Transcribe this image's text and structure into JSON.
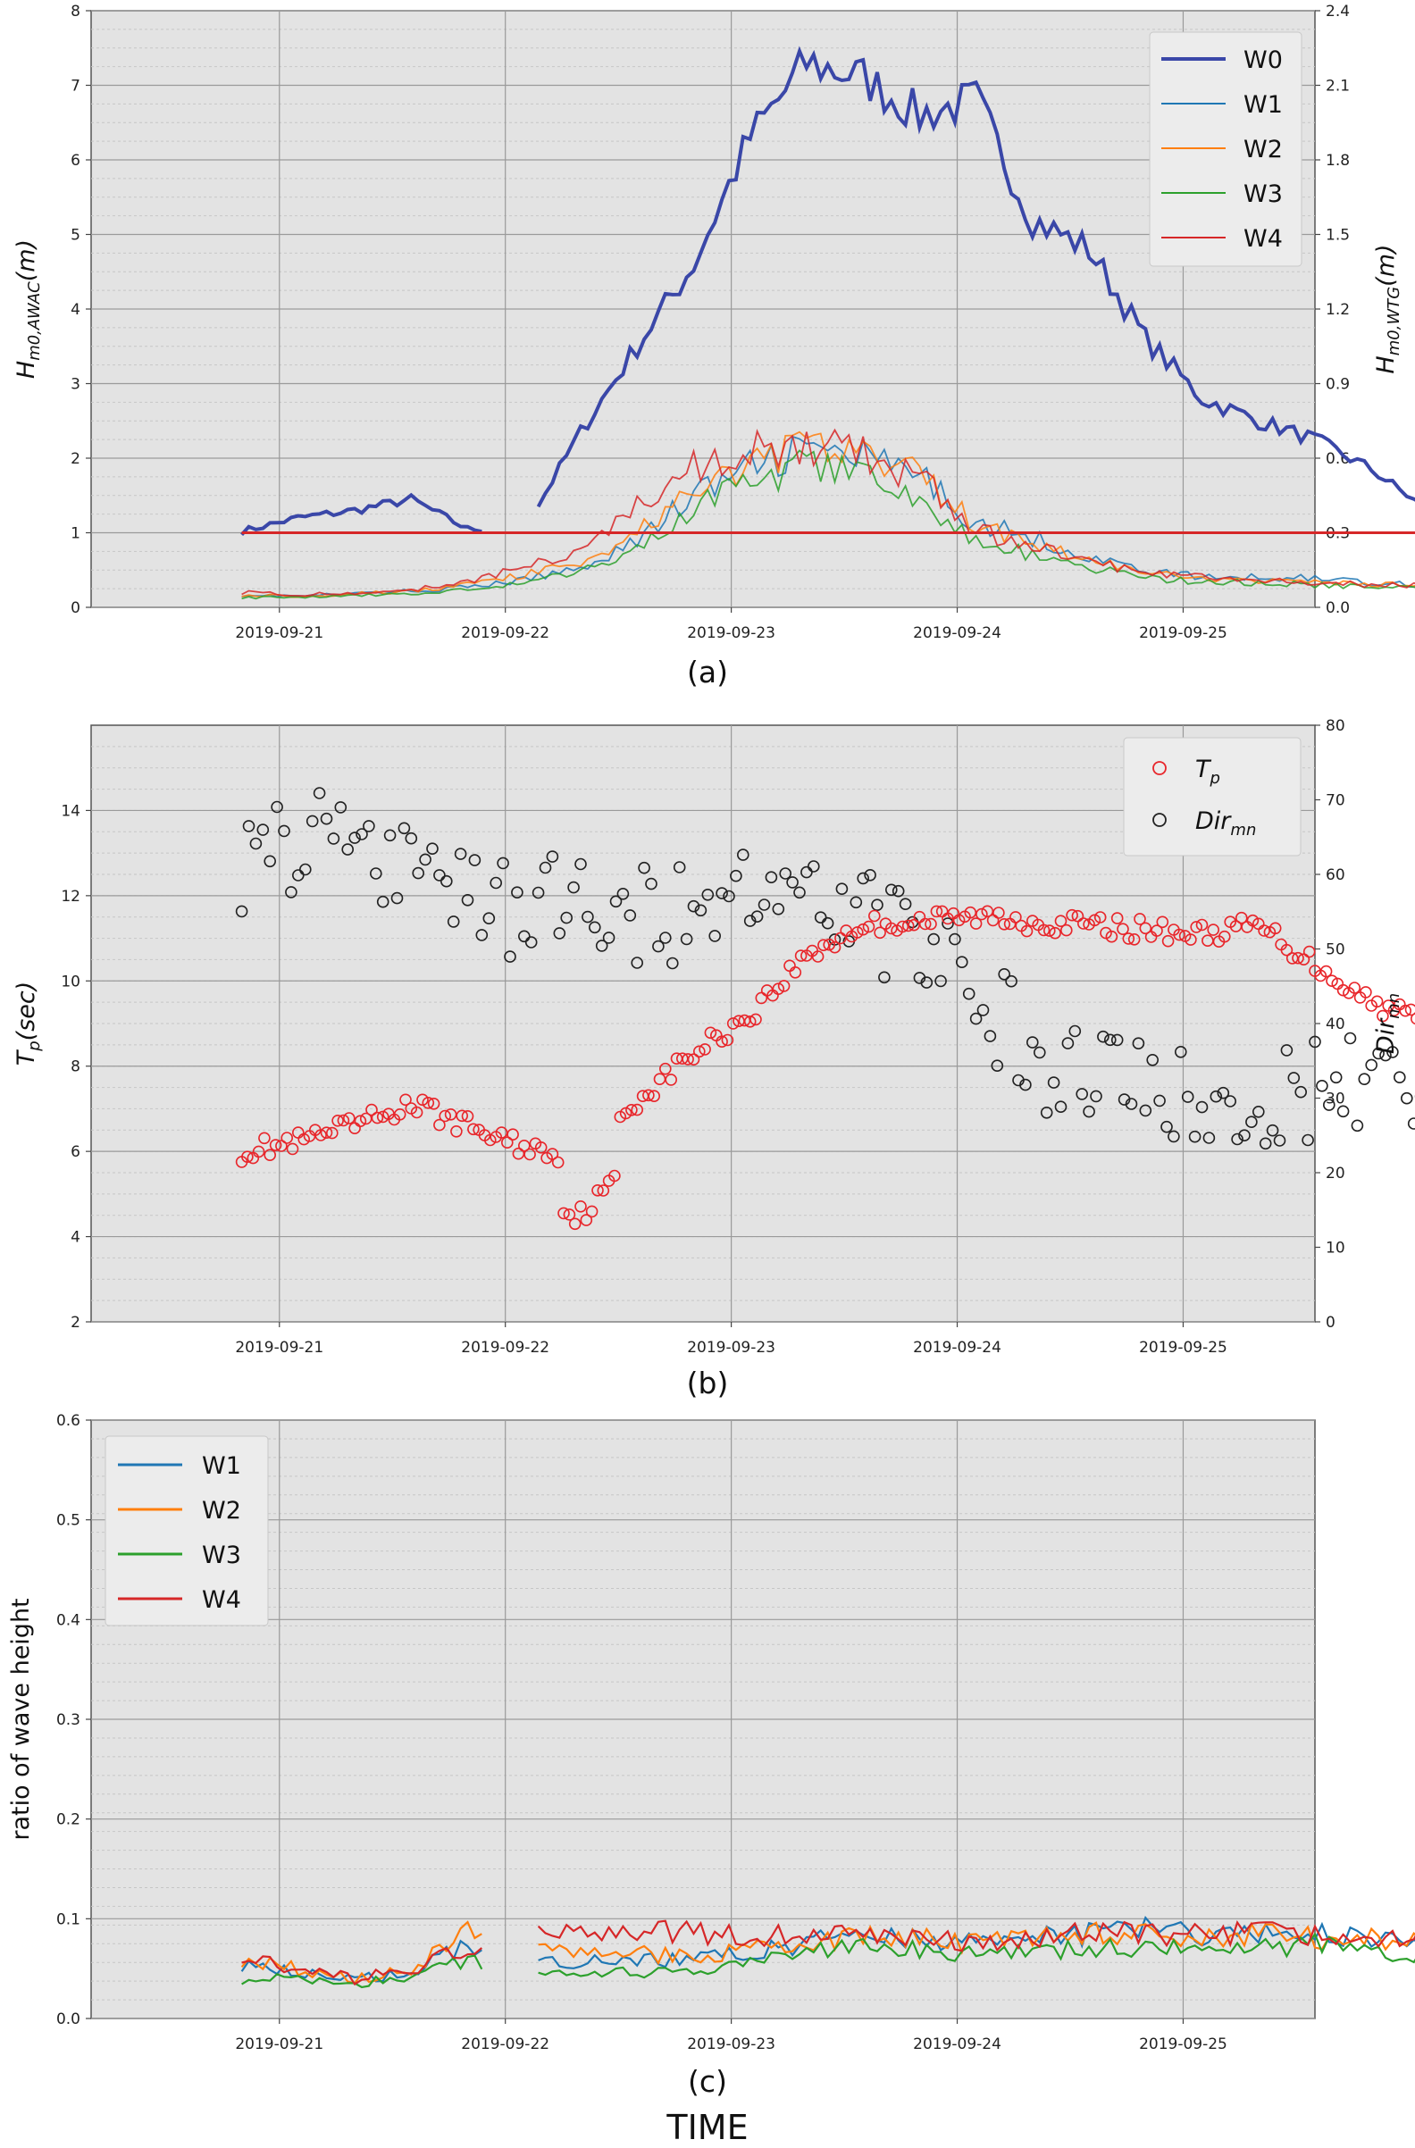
{
  "xaxis_title": "TIME",
  "chart_data": [
    {
      "id": "a",
      "type": "line",
      "panel_label": "(a)",
      "ylabel_left": "Hm0,AWAC(m)",
      "ylabel_left_main": "H",
      "ylabel_left_sub": "m0,AWAC",
      "ylabel_left_unit": "(m)",
      "ylabel_right": "Hm0,WTG(m)",
      "ylabel_right_main": "H",
      "ylabel_right_sub": "m0,WTG",
      "ylabel_right_unit": "(m)",
      "x_range": [
        "2019-09-20 04:00",
        "2019-09-25 14:00"
      ],
      "x_ticks": [
        "2019-09-21",
        "2019-09-22",
        "2019-09-23",
        "2019-09-24",
        "2019-09-25"
      ],
      "ylim_left": [
        0,
        8
      ],
      "ylim_right": [
        0,
        2.4
      ],
      "yticks_left": [
        "0",
        "1",
        "2",
        "3",
        "4",
        "5",
        "6",
        "7",
        "8"
      ],
      "yticks_right": [
        "0.0",
        "0.3",
        "0.6",
        "0.9",
        "1.2",
        "1.5",
        "1.8",
        "2.1",
        "2.4"
      ],
      "legend_position": "top-right",
      "reference_line": {
        "axis": "left",
        "value": 1.0,
        "color": "#d62728"
      },
      "time_hours": [
        0,
        6,
        12,
        18,
        24,
        30,
        36,
        42,
        48,
        54,
        60,
        66,
        72,
        78,
        84,
        90,
        96,
        102,
        108,
        114,
        120,
        126,
        132
      ],
      "series": [
        {
          "name": "W0",
          "axis": "left",
          "color": "#3a47a8",
          "gap_after_index": 4,
          "values": [
            1.02,
            1.2,
            1.3,
            1.45,
            1.05,
            1.05,
            2.35,
            3.5,
            4.6,
            6.3,
            7.3,
            7.1,
            6.6,
            6.8,
            5.2,
            4.8,
            3.6,
            2.8,
            2.5,
            2.25,
            1.85,
            1.3,
            1.05
          ]
        },
        {
          "name": "W1",
          "axis": "right",
          "color": "#1f77b4",
          "values": [
            0.05,
            0.045,
            0.055,
            0.065,
            0.08,
            0.11,
            0.16,
            0.27,
            0.45,
            0.56,
            0.64,
            0.6,
            0.52,
            0.34,
            0.28,
            0.2,
            0.15,
            0.12,
            0.12,
            0.12,
            0.1,
            0.09,
            0.09
          ]
        },
        {
          "name": "W2",
          "axis": "right",
          "color": "#ff7f0e",
          "values": [
            0.05,
            0.045,
            0.055,
            0.065,
            0.09,
            0.13,
            0.18,
            0.3,
            0.46,
            0.58,
            0.65,
            0.6,
            0.55,
            0.33,
            0.26,
            0.19,
            0.14,
            0.11,
            0.11,
            0.1,
            0.09,
            0.09,
            0.1
          ]
        },
        {
          "name": "W3",
          "axis": "right",
          "color": "#2ca02c",
          "values": [
            0.04,
            0.04,
            0.05,
            0.055,
            0.07,
            0.1,
            0.14,
            0.24,
            0.4,
            0.5,
            0.57,
            0.52,
            0.43,
            0.27,
            0.21,
            0.16,
            0.12,
            0.1,
            0.1,
            0.09,
            0.08,
            0.08,
            0.07
          ]
        },
        {
          "name": "W4",
          "axis": "right",
          "color": "#d62728",
          "values": [
            0.06,
            0.05,
            0.06,
            0.07,
            0.1,
            0.16,
            0.24,
            0.4,
            0.56,
            0.64,
            0.65,
            0.62,
            0.52,
            0.31,
            0.24,
            0.18,
            0.14,
            0.12,
            0.11,
            0.1,
            0.09,
            0.09,
            0.09
          ]
        }
      ]
    },
    {
      "id": "b",
      "type": "scatter",
      "panel_label": "(b)",
      "ylabel_left": "Tp(sec)",
      "ylabel_left_main": "T",
      "ylabel_left_sub": "p",
      "ylabel_left_unit": "(sec)",
      "ylabel_right": "Dirmn",
      "ylabel_right_main": "Dir",
      "ylabel_right_sub": "mn",
      "x_range": [
        "2019-09-20 04:00",
        "2019-09-25 14:00"
      ],
      "x_ticks": [
        "2019-09-21",
        "2019-09-22",
        "2019-09-23",
        "2019-09-24",
        "2019-09-25"
      ],
      "ylim_left": [
        2,
        16
      ],
      "ylim_right": [
        0,
        80
      ],
      "yticks_left": [
        "2",
        "4",
        "6",
        "8",
        "10",
        "12",
        "14"
      ],
      "yticks_right": [
        "0",
        "10",
        "20",
        "30",
        "40",
        "50",
        "60",
        "70",
        "80"
      ],
      "legend_position": "top-right",
      "time_hours": [
        0,
        6,
        12,
        18,
        24,
        30,
        36,
        42,
        48,
        54,
        60,
        66,
        72,
        78,
        84,
        90,
        96,
        102,
        108,
        114,
        120,
        126,
        132
      ],
      "series": [
        {
          "name": "Tp",
          "legend_main": "T",
          "legend_sub": "p",
          "axis": "left",
          "color": "#e8262b",
          "values": [
            6.0,
            6.2,
            6.6,
            7.1,
            6.6,
            6.1,
            5.9,
            7.2,
            8.3,
            9.2,
            10.6,
            11.3,
            11.4,
            11.5,
            11.4,
            11.3,
            11.2,
            11.1,
            11.3,
            10.4,
            9.5,
            9.1,
            8.9
          ]
        },
        {
          "name": "Dirmn",
          "legend_main": "Dir",
          "legend_sub": "mn",
          "axis": "right",
          "color": "#222222",
          "values": [
            62,
            64,
            65,
            61,
            58,
            55,
            57,
            55,
            55,
            57,
            58,
            55,
            50,
            45,
            35,
            31,
            32,
            30,
            29,
            31,
            34,
            33,
            35
          ]
        }
      ]
    },
    {
      "id": "c",
      "type": "line",
      "panel_label": "(c)",
      "ylabel_left": "ratio of wave height",
      "x_range": [
        "2019-09-20 04:00",
        "2019-09-25 14:00"
      ],
      "x_ticks": [
        "2019-09-21",
        "2019-09-22",
        "2019-09-23",
        "2019-09-24",
        "2019-09-25"
      ],
      "ylim_left": [
        0,
        0.6
      ],
      "yticks_left": [
        "0.0",
        "0.1",
        "0.2",
        "0.3",
        "0.4",
        "0.5",
        "0.6"
      ],
      "legend_position": "top-left",
      "time_hours": [
        0,
        6,
        12,
        18,
        24,
        30,
        36,
        42,
        48,
        54,
        60,
        66,
        72,
        78,
        84,
        90,
        96,
        102,
        108,
        114,
        120,
        126,
        132
      ],
      "gap_after_index": 4,
      "series": [
        {
          "name": "W1",
          "color": "#1f77b4",
          "values": [
            0.055,
            0.045,
            0.04,
            0.045,
            0.075,
            0.065,
            0.055,
            0.06,
            0.06,
            0.065,
            0.075,
            0.085,
            0.08,
            0.075,
            0.08,
            0.085,
            0.09,
            0.085,
            0.085,
            0.085,
            0.08,
            0.08,
            0.09
          ]
        },
        {
          "name": "W2",
          "color": "#ff7f0e",
          "values": [
            0.06,
            0.05,
            0.04,
            0.05,
            0.085,
            0.07,
            0.065,
            0.065,
            0.06,
            0.07,
            0.075,
            0.085,
            0.08,
            0.075,
            0.08,
            0.085,
            0.085,
            0.08,
            0.085,
            0.08,
            0.08,
            0.08,
            0.09
          ]
        },
        {
          "name": "W3",
          "color": "#2ca02c",
          "values": [
            0.04,
            0.04,
            0.035,
            0.04,
            0.06,
            0.05,
            0.045,
            0.045,
            0.045,
            0.055,
            0.065,
            0.075,
            0.07,
            0.065,
            0.065,
            0.07,
            0.07,
            0.07,
            0.07,
            0.075,
            0.065,
            0.065,
            0.065
          ]
        },
        {
          "name": "W4",
          "color": "#d62728",
          "values": [
            0.065,
            0.05,
            0.04,
            0.05,
            0.07,
            0.085,
            0.085,
            0.09,
            0.085,
            0.085,
            0.08,
            0.085,
            0.08,
            0.075,
            0.08,
            0.085,
            0.085,
            0.085,
            0.085,
            0.085,
            0.08,
            0.085,
            0.1
          ]
        }
      ]
    }
  ]
}
